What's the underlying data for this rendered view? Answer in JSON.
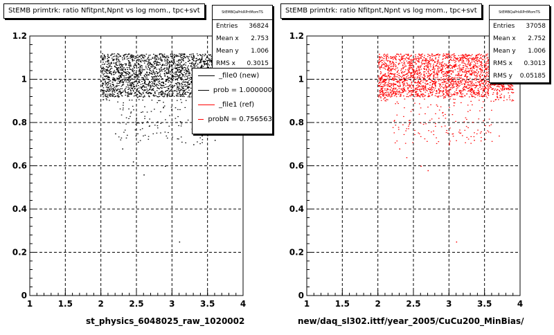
{
  "panels": [
    {
      "title": "StEMB primtrk: ratio Nfitpnt,Npnt vs log mom., tpc+svt",
      "statbox": {
        "name": "StEMBQaPrkRPrtMomTS",
        "rows": [
          {
            "label": "Entries",
            "value": "36824"
          },
          {
            "label": "Mean x",
            "value": "2.753"
          },
          {
            "label": "Mean y",
            "value": "1.006"
          },
          {
            "label": "RMS x",
            "value": "0.3015"
          }
        ]
      },
      "legend": [
        {
          "text": "_file0 (new)",
          "color": "#000000"
        },
        {
          "text": "prob = 1.000000",
          "color": "#000000"
        },
        {
          "text": "_file1 (ref)",
          "color": "#ff0000"
        },
        {
          "text": "probN = 0.756563",
          "color": "#ff0000"
        }
      ],
      "xlabel": "st_physics_6048025_raw_1020002"
    },
    {
      "title": "StEMB primtrk: ratio Nfitpnt,Npnt vs log mom., tpc+svt",
      "statbox": {
        "name": "StEMBQaPrkRPrtMomTS",
        "rows": [
          {
            "label": "Entries",
            "value": "37058"
          },
          {
            "label": "Mean x",
            "value": "2.752"
          },
          {
            "label": "Mean y",
            "value": "1.006"
          },
          {
            "label": "RMS x",
            "value": "0.3013"
          },
          {
            "label": "RMS y",
            "value": "0.05185"
          }
        ]
      },
      "xlabel": "new/daq_sl302.ittf/year_2005/CuCu200_MinBias/"
    }
  ],
  "chart_data": [
    {
      "type": "scatter",
      "title": "StEMB primtrk: ratio Nfitpnt,Npnt vs log mom., tpc+svt",
      "xlabel": "st_physics_6048025_raw_1020002",
      "ylabel": "",
      "xlim": [
        1,
        4
      ],
      "ylim": [
        0,
        1.2
      ],
      "xticks": [
        "1",
        "1.5",
        "2",
        "2.5",
        "3",
        "3.5",
        "4"
      ],
      "yticks": [
        "0",
        "0.2",
        "0.4",
        "0.6",
        "0.8",
        "1",
        "1.2"
      ],
      "grid": true,
      "marker_color": "#000000",
      "series": [
        {
          "name": "_file0 (new)",
          "summary": {
            "entries": 36824,
            "mean_x": 2.753,
            "mean_y": 1.006,
            "rms_x": 0.3015
          },
          "density": {
            "x_range": [
              2.0,
              3.9
            ],
            "y_core": [
              0.92,
              1.12
            ],
            "y_tail_min": 0.7
          },
          "outliers": [
            [
              2.3,
              0.68
            ],
            [
              2.6,
              0.56
            ],
            [
              2.9,
              0.6
            ],
            [
              3.1,
              0.25
            ],
            [
              2.45,
              0.62
            ],
            [
              3.3,
              0.7
            ],
            [
              2.2,
              0.75
            ],
            [
              3.6,
              0.72
            ]
          ]
        }
      ]
    },
    {
      "type": "scatter",
      "title": "StEMB primtrk: ratio Nfitpnt,Npnt vs log mom., tpc+svt",
      "xlabel": "new/daq_sl302.ittf/year_2005/CuCu200_MinBias/",
      "ylabel": "",
      "xlim": [
        1,
        4
      ],
      "ylim": [
        0,
        1.2
      ],
      "xticks": [
        "1",
        "1.5",
        "2",
        "2.5",
        "3",
        "3.5",
        "4"
      ],
      "yticks": [
        "0",
        "0.2",
        "0.4",
        "0.6",
        "0.8",
        "1",
        "1.2"
      ],
      "grid": true,
      "marker_color": "#ff0000",
      "series": [
        {
          "name": "_file1 (ref)",
          "summary": {
            "entries": 37058,
            "mean_x": 2.752,
            "mean_y": 1.006,
            "rms_x": 0.3013,
            "rms_y": 0.05185
          },
          "density": {
            "x_range": [
              2.0,
              3.9
            ],
            "y_core": [
              0.92,
              1.12
            ],
            "y_tail_min": 0.7
          },
          "outliers": [
            [
              2.3,
              0.68
            ],
            [
              2.6,
              0.6
            ],
            [
              2.7,
              0.58
            ],
            [
              3.1,
              0.25
            ],
            [
              3.35,
              0.72
            ],
            [
              2.4,
              0.64
            ],
            [
              3.0,
              0.7
            ],
            [
              3.7,
              0.74
            ]
          ]
        }
      ]
    }
  ]
}
